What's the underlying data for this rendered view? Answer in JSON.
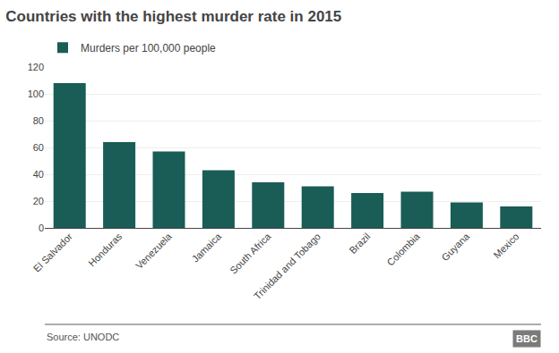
{
  "chart_data": {
    "type": "bar",
    "title": "Countries with the highest murder rate in 2015",
    "categories": [
      "El Salvador",
      "Honduras",
      "Venezuela",
      "Jamaica",
      "South Africa",
      "Trinidad and Tobago",
      "Brazil",
      "Colombia",
      "Guyana",
      "Mexico"
    ],
    "series": [
      {
        "name": "Murders per 100,000 people",
        "color": "#1a5c56",
        "values": [
          108,
          64,
          57,
          43,
          34,
          31,
          26,
          27,
          19,
          16
        ]
      }
    ],
    "ylim": [
      0,
      120
    ],
    "yticks": [
      0,
      20,
      40,
      60,
      80,
      100,
      120
    ],
    "grid": true,
    "legend": "upper left",
    "annotations": [
      "Source: UNODC",
      "BBC"
    ]
  }
}
